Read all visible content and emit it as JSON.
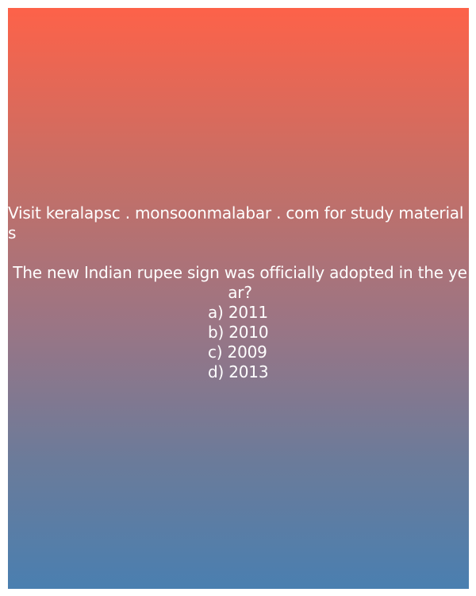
{
  "promo_text": "Visit keralapsc . monsoonmalabar . com for study materials",
  "question": "The new Indian rupee sign was officially adopted in the year?",
  "options": [
    "a) 2011",
    "b) 2010",
    "c) 2009",
    "d) 2013"
  ],
  "colors": {
    "gradient_top": "#fd6249",
    "gradient_bottom": "#4a7fb0",
    "text": "#ffffff"
  }
}
